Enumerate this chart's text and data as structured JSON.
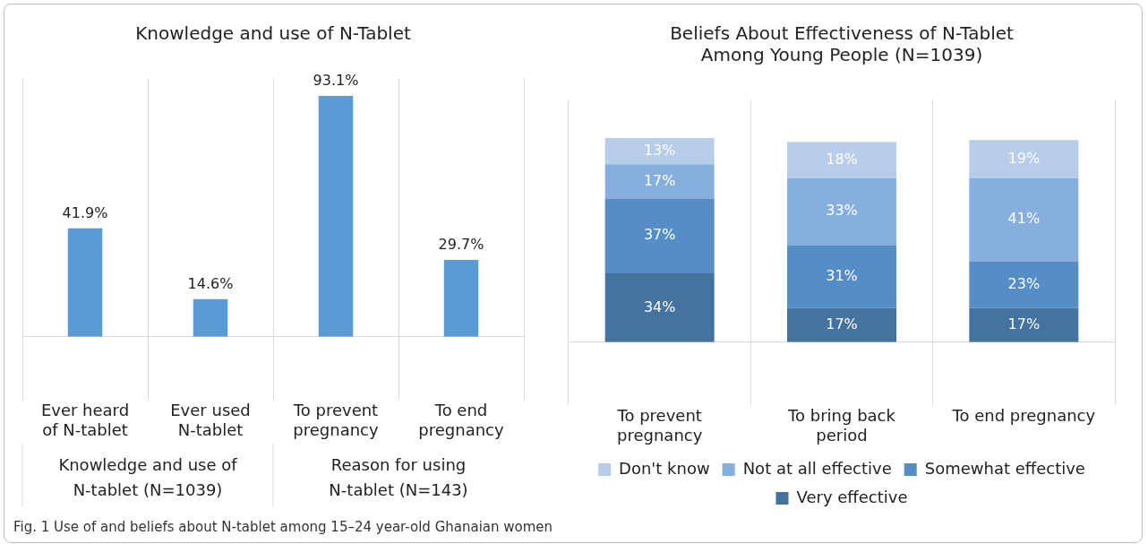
{
  "chart_data": [
    {
      "type": "bar",
      "title": "Knowledge and use of N-Tablet",
      "categories": [
        "Ever heard of N-tablet",
        "Ever used N-tablet",
        "To prevent pregnancy",
        "To end pregnancy"
      ],
      "values": [
        41.9,
        14.6,
        93.1,
        29.7
      ],
      "value_labels": [
        "41.9%",
        "14.6%",
        "93.1%",
        "29.7%"
      ],
      "color": "#5b9bd5",
      "grid": "x",
      "tick_labels": "x",
      "annotations": [
        "Knowledge and use of N-tablet (N=1039)",
        "Reason for using N-tablet (N=143)",
        "Fig. 1  Use of and beliefs about N-tablet among 15–24 year-old Ghanaian women"
      ]
    },
    {
      "type": "bar",
      "stacked": true,
      "title": "Beliefs About Effectiveness of N-Tablet Among Young People (N=1039)",
      "categories": [
        "To prevent pregnancy",
        "To bring back period",
        "To end pregnancy"
      ],
      "grid": "x",
      "tick_labels": "x",
      "legend": "bottom",
      "series": [
        {
          "name": "Very effective",
          "color": "#44739f",
          "values": [
            34,
            17,
            17
          ],
          "value_labels": [
            "34%",
            "17%",
            "17%"
          ]
        },
        {
          "name": "Somewhat effective",
          "color": "#558dc6",
          "values": [
            37,
            31,
            23
          ],
          "value_labels": [
            "37%",
            "31%",
            "23%"
          ]
        },
        {
          "name": "Not at all effective",
          "color": "#86afdd",
          "values": [
            17,
            33,
            41
          ],
          "value_labels": [
            "17%",
            "33%",
            "41%"
          ]
        },
        {
          "name": "Don't know",
          "color": "#b7cde9",
          "values": [
            13,
            18,
            19
          ],
          "value_labels": [
            "13%",
            "18%",
            "19%"
          ]
        }
      ]
    }
  ]
}
